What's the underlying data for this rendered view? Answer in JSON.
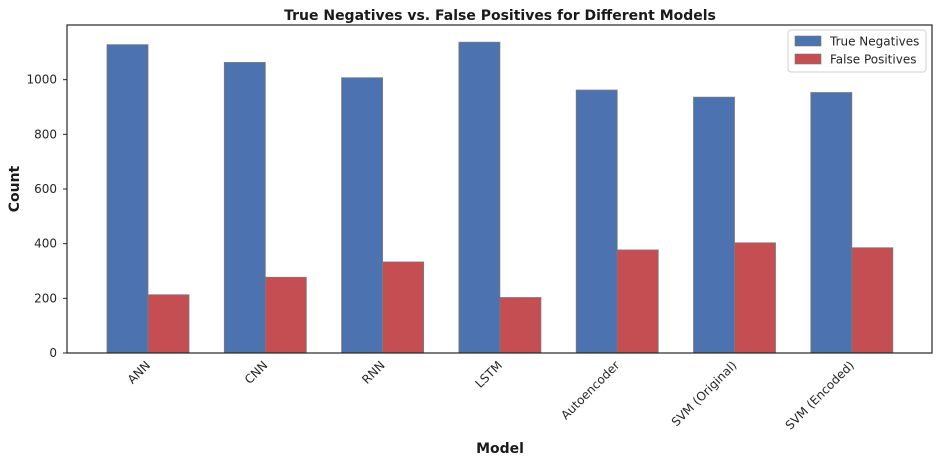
{
  "chart_data": {
    "type": "bar",
    "title": "True Negatives vs. False Positives for Different Models",
    "xlabel": "Model",
    "ylabel": "Count",
    "categories": [
      "ANN",
      "CNN",
      "RNN",
      "LSTM",
      "Autoencoder",
      "SVM (Original)",
      "SVM (Encoded)"
    ],
    "series": [
      {
        "name": "True Negatives",
        "color": "#4c72b0",
        "values": [
          1128,
          1063,
          1007,
          1137,
          962,
          936,
          953
        ]
      },
      {
        "name": "False Positives",
        "color": "#c44e52",
        "values": [
          213,
          277,
          333,
          203,
          377,
          403,
          385
        ]
      }
    ],
    "ylim": [
      0,
      1200
    ],
    "yticks": [
      0,
      200,
      400,
      600,
      800,
      1000
    ],
    "grid": false,
    "legend_position": "top-right"
  }
}
